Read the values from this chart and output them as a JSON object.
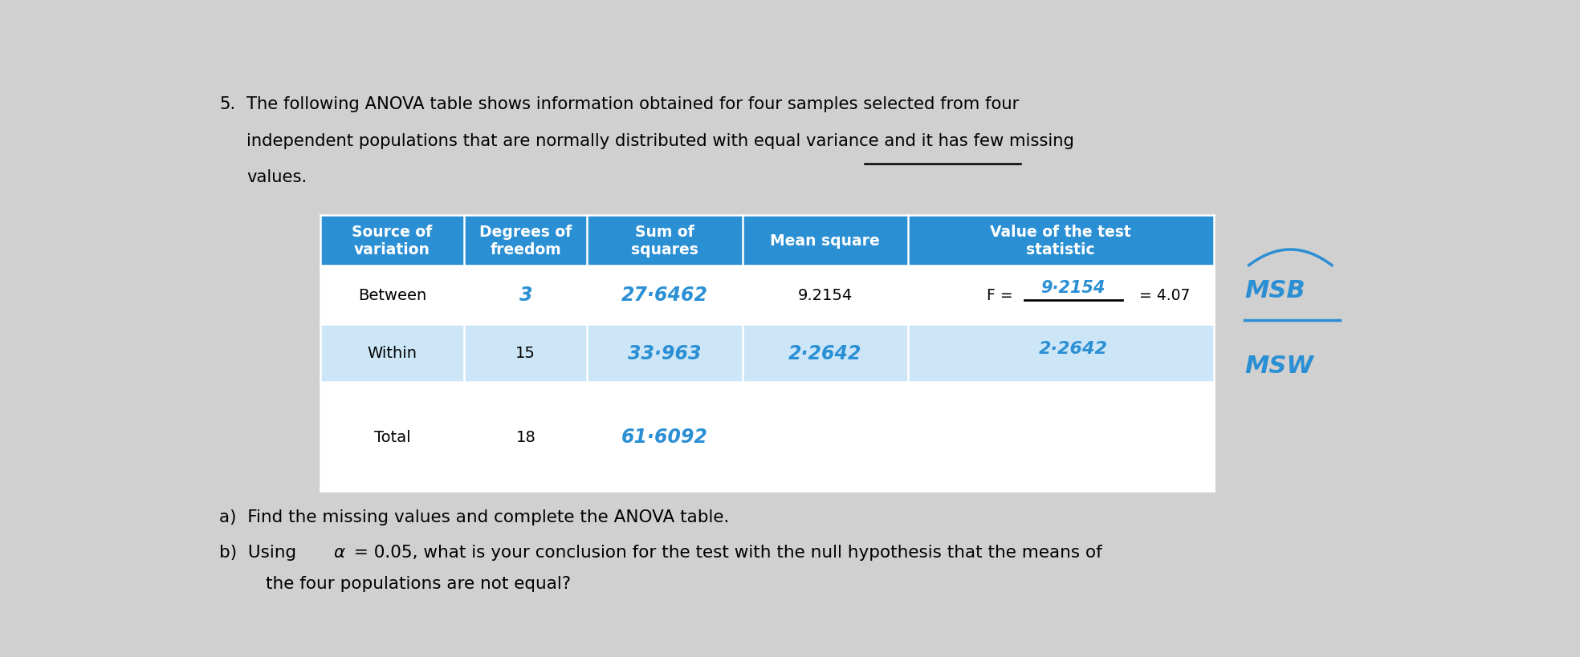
{
  "bg_color": "#d0d0d0",
  "header_bg": "#2b8fd4",
  "row1_bg": "#ffffff",
  "row2_bg": "#cce6f7",
  "row3_bg": "#ffffff",
  "col_headers": [
    "Source of\nvariation",
    "Degrees of\nfreedom",
    "Sum of\nsquares",
    "Mean square",
    "Value of the test\nstatistic"
  ],
  "handwritten_color": "#2b8fd4",
  "title_number": "5.",
  "title_line1": " The following ANOVA table shows information obtained for four samples selected from four",
  "title_line2": "   independent populations that are normally distributed with equal variance and it has few missing",
  "title_line3": "   values.",
  "footer_a": "a)  Find the missing values and complete the ANOVA table.",
  "footer_b1": "b)  Using ",
  "alpha_symbol": "α",
  "footer_b2": " = 0.05, what is your conclusion for the test with the null hypothesis that the means of",
  "footer_b3": "     the four populations are not equal?"
}
